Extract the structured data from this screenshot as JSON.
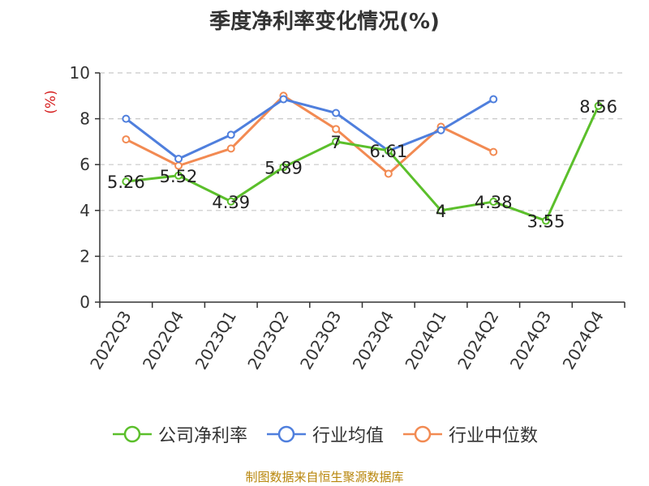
{
  "chart_data": {
    "type": "line",
    "title": "季度净利率变化情况(%)",
    "ylabel": "(%)",
    "xlabel": "",
    "ylim": [
      0,
      10
    ],
    "yticks": [
      0,
      2,
      4,
      6,
      8,
      10
    ],
    "grid": true,
    "legend_position": "bottom",
    "categories": [
      "2022Q3",
      "2022Q4",
      "2023Q1",
      "2023Q2",
      "2023Q3",
      "2023Q4",
      "2024Q1",
      "2024Q2",
      "2024Q3",
      "2024Q4"
    ],
    "series": [
      {
        "name": "公司净利率",
        "color": "#5bbf2b",
        "values": [
          5.26,
          5.52,
          4.39,
          5.89,
          7,
          6.61,
          4,
          4.38,
          3.55,
          8.56
        ],
        "labels": [
          "5.26",
          "5.52",
          "4.39",
          "5.89",
          "7",
          "6.61",
          "4",
          "4.38",
          "3.55",
          "8.56"
        ]
      },
      {
        "name": "行业均值",
        "color": "#4f7fdd",
        "values": [
          8.0,
          6.25,
          7.3,
          8.85,
          8.25,
          6.6,
          7.5,
          8.85,
          null,
          null
        ]
      },
      {
        "name": "行业中位数",
        "color": "#f28a52",
        "values": [
          7.1,
          5.95,
          6.7,
          9.0,
          7.55,
          5.6,
          7.65,
          6.55,
          null,
          null
        ]
      }
    ],
    "source": "制图数据来自恒生聚源数据库"
  }
}
